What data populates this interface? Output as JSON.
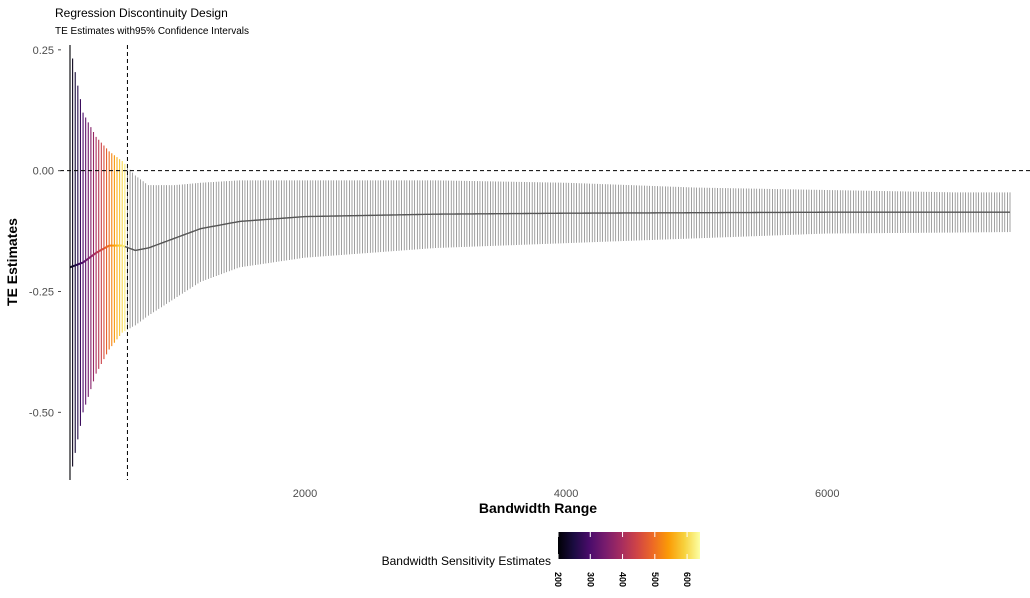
{
  "chart_data": {
    "type": "errorbar-line",
    "title": "Regression Discontinuity Design",
    "subtitle": "TE Estimates with95% Confidence Intervals",
    "xlabel": "Bandwidth Range",
    "ylabel": "TE Estimates",
    "xlim": [
      200,
      7400
    ],
    "ylim": [
      -0.64,
      0.26
    ],
    "xticks": [
      2000,
      4000,
      6000
    ],
    "xtick_labels": [
      "2000",
      "4000",
      "6000"
    ],
    "yticks": [
      0.25,
      0.0,
      -0.25,
      -0.5
    ],
    "ytick_labels": [
      "0.25",
      "0.00",
      "-0.25",
      "-0.50"
    ],
    "grid": false,
    "reference_lines": {
      "hline_y": 0.0,
      "vline_x": 640
    },
    "bandwidth_step": 20,
    "colored_range": [
      200,
      620
    ],
    "gray_color": "#777777",
    "series": {
      "x": [
        200,
        300,
        400,
        500,
        600,
        700,
        800,
        1000,
        1200,
        1500,
        2000,
        3000,
        4000,
        5000,
        6000,
        7000,
        7400
      ],
      "estimate": [
        -0.2,
        -0.19,
        -0.17,
        -0.155,
        -0.155,
        -0.165,
        -0.16,
        -0.14,
        -0.12,
        -0.105,
        -0.095,
        -0.09,
        -0.088,
        -0.087,
        -0.086,
        -0.086,
        -0.086
      ],
      "ci_lower": [
        -0.64,
        -0.5,
        -0.42,
        -0.37,
        -0.335,
        -0.32,
        -0.3,
        -0.265,
        -0.23,
        -0.2,
        -0.18,
        -0.16,
        -0.15,
        -0.14,
        -0.13,
        -0.128,
        -0.127
      ],
      "ci_upper": [
        0.26,
        0.12,
        0.07,
        0.04,
        0.02,
        -0.01,
        -0.03,
        -0.03,
        -0.025,
        -0.02,
        -0.02,
        -0.02,
        -0.025,
        -0.035,
        -0.04,
        -0.045,
        -0.045
      ]
    },
    "legend": {
      "title": "Bandwidth Sensitivity Estimates",
      "position": "bottom",
      "domain": [
        200,
        640
      ],
      "ticks": [
        200,
        300,
        400,
        500,
        600
      ],
      "tick_labels": [
        "200",
        "300",
        "400",
        "500",
        "600"
      ],
      "palette": [
        "#000004",
        "#1b0c41",
        "#4a0c6b",
        "#781c6d",
        "#a52c60",
        "#cf4446",
        "#ed6925",
        "#fb9b06",
        "#f7d13d",
        "#fcffa4"
      ]
    }
  }
}
